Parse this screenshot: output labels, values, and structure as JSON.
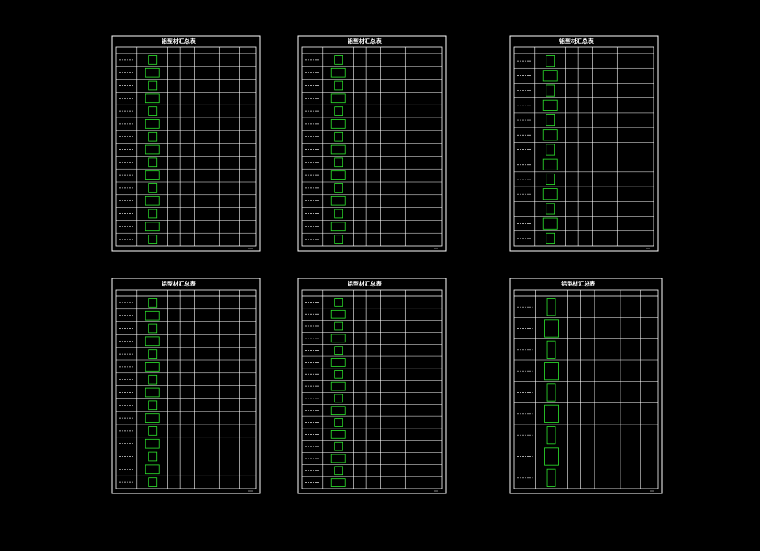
{
  "sheets": [
    {
      "title": "铝型材汇总表"
    },
    {
      "title": "铝型材汇总表"
    },
    {
      "title": "铝型材汇总表"
    },
    {
      "title": "铝型材汇总表"
    },
    {
      "title": "铝型材汇总表"
    },
    {
      "title": "铝型材汇总表"
    }
  ]
}
